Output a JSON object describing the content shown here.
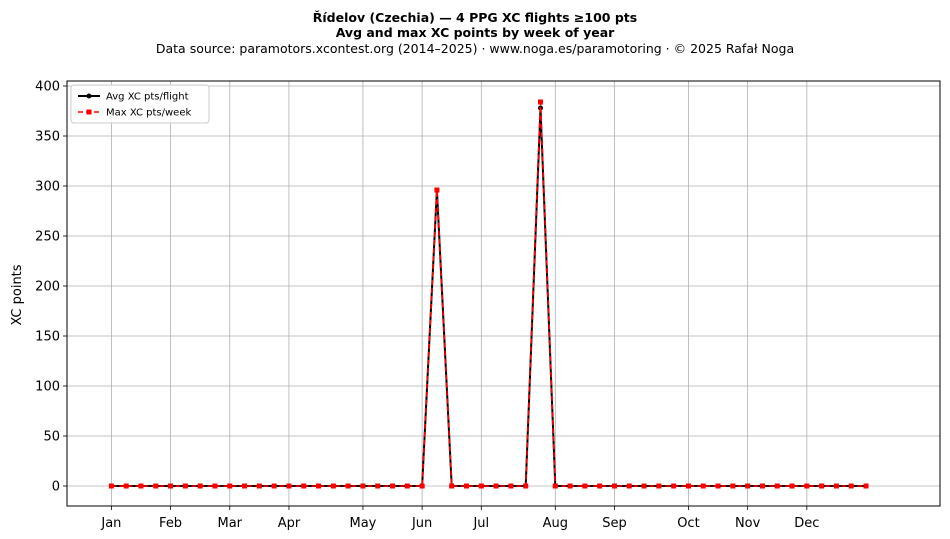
{
  "header": {
    "title": "Řídelov (Czechia)  —  4 PPG XC flights ≥100 pts",
    "subtitle": "Avg and max XC points by week of year",
    "source": "Data source: paramotors.xcontest.org (2014–2025)  ·  www.noga.es/paramotoring  ·  © 2025 Rafał Noga"
  },
  "chart_data": {
    "type": "line",
    "xlabel": "",
    "ylabel": "XC points",
    "ylim": [
      -20,
      405
    ],
    "xlim": [
      -3,
      56
    ],
    "grid": true,
    "legend_position": "top-left",
    "x_ticks": [
      {
        "label": "Jan",
        "week": 0
      },
      {
        "label": "Feb",
        "week": 4
      },
      {
        "label": "Mar",
        "week": 8
      },
      {
        "label": "Apr",
        "week": 12
      },
      {
        "label": "May",
        "week": 17
      },
      {
        "label": "Jun",
        "week": 21
      },
      {
        "label": "Jul",
        "week": 25
      },
      {
        "label": "Aug",
        "week": 30
      },
      {
        "label": "Sep",
        "week": 34
      },
      {
        "label": "Oct",
        "week": 39
      },
      {
        "label": "Nov",
        "week": 43
      },
      {
        "label": "Dec",
        "week": 47
      }
    ],
    "y_ticks": [
      0,
      50,
      100,
      150,
      200,
      250,
      300,
      350,
      400
    ],
    "x": [
      0,
      1,
      2,
      3,
      4,
      5,
      6,
      7,
      8,
      9,
      10,
      11,
      12,
      13,
      14,
      15,
      16,
      17,
      18,
      19,
      20,
      21,
      22,
      23,
      24,
      25,
      26,
      27,
      28,
      29,
      30,
      31,
      32,
      33,
      34,
      35,
      36,
      37,
      38,
      39,
      40,
      41,
      42,
      43,
      44,
      45,
      46,
      47,
      48,
      49,
      50,
      51
    ],
    "series": [
      {
        "name": "Avg XC pts/flight",
        "color": "#000000",
        "values": [
          0,
          0,
          0,
          0,
          0,
          0,
          0,
          0,
          0,
          0,
          0,
          0,
          0,
          0,
          0,
          0,
          0,
          0,
          0,
          0,
          0,
          0,
          296,
          0,
          0,
          0,
          0,
          0,
          0,
          378,
          0,
          0,
          0,
          0,
          0,
          0,
          0,
          0,
          0,
          0,
          0,
          0,
          0,
          0,
          0,
          0,
          0,
          0,
          0,
          0,
          0,
          0
        ]
      },
      {
        "name": "Max XC pts/week",
        "color": "#ff0000",
        "values": [
          0,
          0,
          0,
          0,
          0,
          0,
          0,
          0,
          0,
          0,
          0,
          0,
          0,
          0,
          0,
          0,
          0,
          0,
          0,
          0,
          0,
          0,
          296,
          0,
          0,
          0,
          0,
          0,
          0,
          384,
          0,
          0,
          0,
          0,
          0,
          0,
          0,
          0,
          0,
          0,
          0,
          0,
          0,
          0,
          0,
          0,
          0,
          0,
          0,
          0,
          0,
          0
        ]
      }
    ]
  }
}
